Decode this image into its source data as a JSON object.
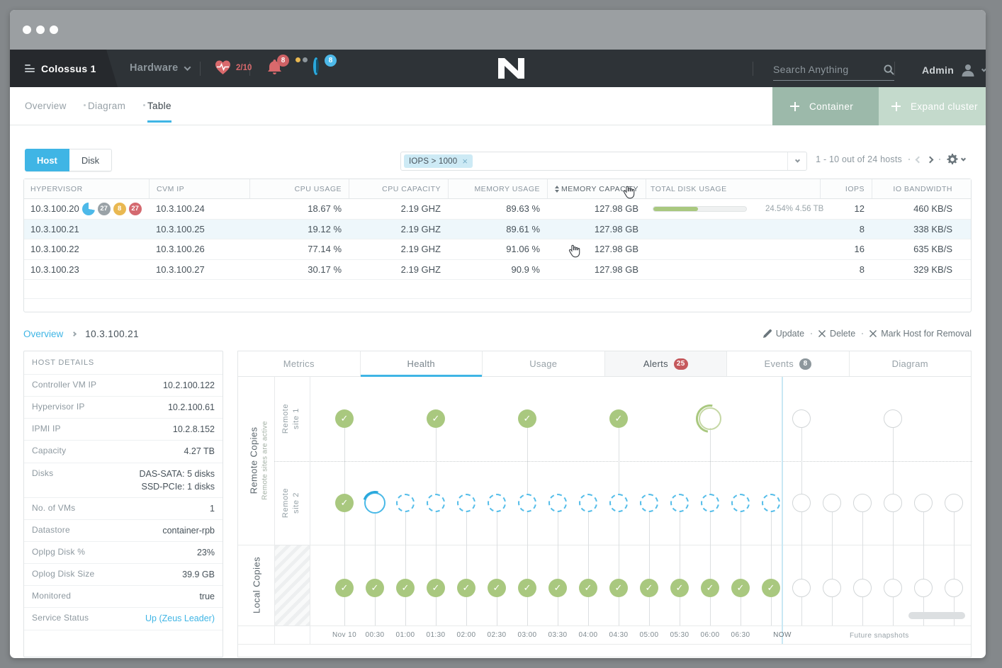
{
  "appbar": {
    "cluster_name": "Colossus 1",
    "section_dropdown": "Hardware",
    "health_score": "2/10",
    "critical_alert_count": "8",
    "task_count": "8",
    "search_placeholder": "Search Anything",
    "username": "Admin"
  },
  "subnav": {
    "views": [
      "Overview",
      "Diagram",
      "Table"
    ],
    "active_view": "Table",
    "container_button": "Container",
    "expand_button": "Expand cluster"
  },
  "toolbar": {
    "entity_toggle": [
      "Host",
      "Disk"
    ],
    "active_entity": "Host",
    "filter_chip": "IOPS > 1000",
    "range_text": "1 - 10 out of 24 hosts"
  },
  "hosts_table": {
    "columns": [
      "HYPERVISOR",
      "CVM IP",
      "CPU USAGE",
      "CPU CAPACITY",
      "MEMORY USAGE",
      "MEMORY CAPACITY",
      "TOTAL DISK USAGE",
      "IOPS",
      "IO BANDWIDTH"
    ],
    "sorted_column": "MEMORY CAPACITY",
    "rows": [
      {
        "hypervisor": "10.3.100.20",
        "badges": [
          {
            "kind": "pie",
            "label": "",
            "color": "#4db9e9"
          },
          {
            "kind": "count",
            "label": "27",
            "color": "#9aa2a7"
          },
          {
            "kind": "count",
            "label": "8",
            "color": "#e9b851"
          },
          {
            "kind": "count",
            "label": "27",
            "color": "#d4696f"
          }
        ],
        "cvm_ip": "10.3.100.24",
        "cpu_usage": "18.67 %",
        "cpu_capacity": "2.19 GHZ",
        "memory_usage": "89.63 %",
        "memory_capacity": "127.98 GB",
        "disk_usage": {
          "fill_pct": 48,
          "label": "24.54% 4.56 TB"
        },
        "iops": "12",
        "io_bandwidth": "460 KB/S",
        "selected": false
      },
      {
        "hypervisor": "10.3.100.21",
        "badges": [],
        "cvm_ip": "10.3.100.25",
        "cpu_usage": "19.12 %",
        "cpu_capacity": "2.19 GHZ",
        "memory_usage": "89.61 %",
        "memory_capacity": "127.98 GB",
        "disk_usage": null,
        "iops": "8",
        "io_bandwidth": "338 KB/S",
        "selected": true
      },
      {
        "hypervisor": "10.3.100.22",
        "badges": [],
        "cvm_ip": "10.3.100.26",
        "cpu_usage": "77.14 %",
        "cpu_capacity": "2.19 GHZ",
        "memory_usage": "91.06 %",
        "memory_capacity": "127.98 GB",
        "disk_usage": null,
        "iops": "16",
        "io_bandwidth": "635 KB/S",
        "selected": false
      },
      {
        "hypervisor": "10.3.100.23",
        "badges": [],
        "cvm_ip": "10.3.100.27",
        "cpu_usage": "30.17 %",
        "cpu_capacity": "2.19 GHZ",
        "memory_usage": "90.9 %",
        "memory_capacity": "127.98 GB",
        "disk_usage": null,
        "iops": "8",
        "io_bandwidth": "329 KB/S",
        "selected": false
      }
    ]
  },
  "selection": {
    "breadcrumb_root": "Overview",
    "breadcrumb_current": "10.3.100.21",
    "actions": [
      {
        "label": "Update",
        "icon": "pencil"
      },
      {
        "label": "Delete",
        "icon": "x"
      },
      {
        "label": "Mark Host for Removal",
        "icon": "x"
      }
    ]
  },
  "host_details": {
    "title": "HOST DETAILS",
    "rows": [
      {
        "label": "Controller VM IP",
        "value": "10.2.100.122"
      },
      {
        "label": "Hypervisor IP",
        "value": "10.2.100.61"
      },
      {
        "label": "IPMI IP",
        "value": "10.2.8.152"
      },
      {
        "label": "Capacity",
        "value": "4.27 TB"
      },
      {
        "label": "Disks",
        "value": "DAS-SATA: 5 disks",
        "value2": "SSD-PCIe: 1 disks"
      },
      {
        "label": "No. of VMs",
        "value": "1"
      },
      {
        "label": "Datastore",
        "value": "container-rpb"
      },
      {
        "label": "Oplpg Disk %",
        "value": "23%"
      },
      {
        "label": "Oplog Disk Size",
        "value": "39.9 GB"
      },
      {
        "label": "Monitored",
        "value": "true"
      },
      {
        "label": "Service Status",
        "value": "Up (Zeus Leader)",
        "link": true
      }
    ]
  },
  "detail_tabs": [
    {
      "label": "Metrics"
    },
    {
      "label": "Health",
      "active": true
    },
    {
      "label": "Usage"
    },
    {
      "label": "Alerts",
      "badge": "25",
      "badge_color": "#c5595d",
      "shaded": true
    },
    {
      "label": "Events",
      "badge": "8",
      "badge_color": "#8d979c"
    },
    {
      "label": "Diagram"
    }
  ],
  "timeline": {
    "type": "snapshot-timeline",
    "group_labels": [
      {
        "title": "Remote Copies",
        "subtitle": "Remote sites are active"
      },
      {
        "title": "Local Copies",
        "subtitle": ""
      }
    ],
    "row_labels": [
      "Remote site 1",
      "Remote site 2"
    ],
    "rows": [
      {
        "label": "Remote site 1",
        "snapshots": [
          {
            "slot": 0,
            "state": "done"
          },
          {
            "slot": 3,
            "state": "done"
          },
          {
            "slot": 6,
            "state": "done"
          },
          {
            "slot": 9,
            "state": "done"
          },
          {
            "slot": 12,
            "state": "loading"
          },
          {
            "slot": 15,
            "state": "future"
          },
          {
            "slot": 18,
            "state": "future"
          }
        ]
      },
      {
        "label": "Remote site 2",
        "snapshots": [
          {
            "slot": 0,
            "state": "done"
          },
          {
            "slot": 1,
            "state": "progress"
          },
          {
            "slot": 2,
            "state": "scheduled"
          },
          {
            "slot": 3,
            "state": "scheduled"
          },
          {
            "slot": 4,
            "state": "scheduled"
          },
          {
            "slot": 5,
            "state": "scheduled"
          },
          {
            "slot": 6,
            "state": "scheduled"
          },
          {
            "slot": 7,
            "state": "scheduled"
          },
          {
            "slot": 8,
            "state": "scheduled"
          },
          {
            "slot": 9,
            "state": "scheduled"
          },
          {
            "slot": 10,
            "state": "scheduled"
          },
          {
            "slot": 11,
            "state": "scheduled"
          },
          {
            "slot": 12,
            "state": "scheduled"
          },
          {
            "slot": 13,
            "state": "scheduled"
          },
          {
            "slot": 14,
            "state": "scheduled"
          },
          {
            "slot": 15,
            "state": "future"
          },
          {
            "slot": 16,
            "state": "future"
          },
          {
            "slot": 17,
            "state": "future"
          },
          {
            "slot": 18,
            "state": "future"
          },
          {
            "slot": 19,
            "state": "future"
          },
          {
            "slot": 20,
            "state": "future"
          }
        ]
      },
      {
        "label": "Local Copies",
        "snapshots": [
          {
            "slot": 0,
            "state": "done"
          },
          {
            "slot": 1,
            "state": "done"
          },
          {
            "slot": 2,
            "state": "done"
          },
          {
            "slot": 3,
            "state": "done"
          },
          {
            "slot": 4,
            "state": "done"
          },
          {
            "slot": 5,
            "state": "done"
          },
          {
            "slot": 6,
            "state": "done"
          },
          {
            "slot": 7,
            "state": "done"
          },
          {
            "slot": 8,
            "state": "done"
          },
          {
            "slot": 9,
            "state": "done"
          },
          {
            "slot": 10,
            "state": "done"
          },
          {
            "slot": 11,
            "state": "done"
          },
          {
            "slot": 12,
            "state": "done"
          },
          {
            "slot": 13,
            "state": "done"
          },
          {
            "slot": 14,
            "state": "done"
          },
          {
            "slot": 15,
            "state": "future"
          },
          {
            "slot": 16,
            "state": "future"
          },
          {
            "slot": 17,
            "state": "future"
          },
          {
            "slot": 18,
            "state": "future"
          },
          {
            "slot": 19,
            "state": "future"
          },
          {
            "slot": 20,
            "state": "future"
          }
        ]
      }
    ],
    "x_labels": [
      "Nov 10",
      "00:30",
      "01:00",
      "01:30",
      "02:00",
      "02:30",
      "03:00",
      "03:30",
      "04:00",
      "04:30",
      "05:00",
      "05:30",
      "06:00",
      "06:30"
    ],
    "now_label": "NOW",
    "future_label": "Future snapshots",
    "state_colors": {
      "done": "#a9c87f",
      "scheduled": "#54bde9",
      "progress": "#2aa8dc",
      "future": "#d2d6d8"
    }
  }
}
